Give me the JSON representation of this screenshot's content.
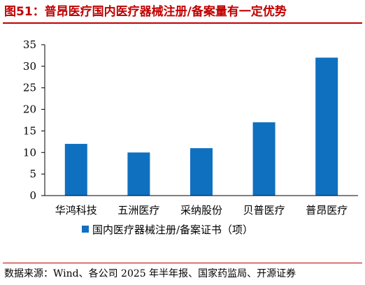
{
  "title": "图51：普昂医疗国内医疗器械注册/备案量有一定优势",
  "source": "数据来源：Wind、各公司 2025 年半年报、国家药监局、开源证券",
  "colors": {
    "bar": "#1070c0",
    "title": "#c00000",
    "axis": "#000000"
  },
  "chart_data": {
    "type": "bar",
    "categories": [
      "华鸿科技",
      "五洲医疗",
      "采纳股份",
      "贝普医疗",
      "普昂医疗"
    ],
    "series": [
      {
        "name": "国内医疗器械注册/备案证书（项）",
        "values": [
          12,
          10,
          11,
          17,
          32
        ]
      }
    ],
    "ylim": [
      0,
      35
    ],
    "yticks": [
      0,
      5,
      10,
      15,
      20,
      25,
      30,
      35
    ],
    "grid": false,
    "legend": "bottom"
  }
}
